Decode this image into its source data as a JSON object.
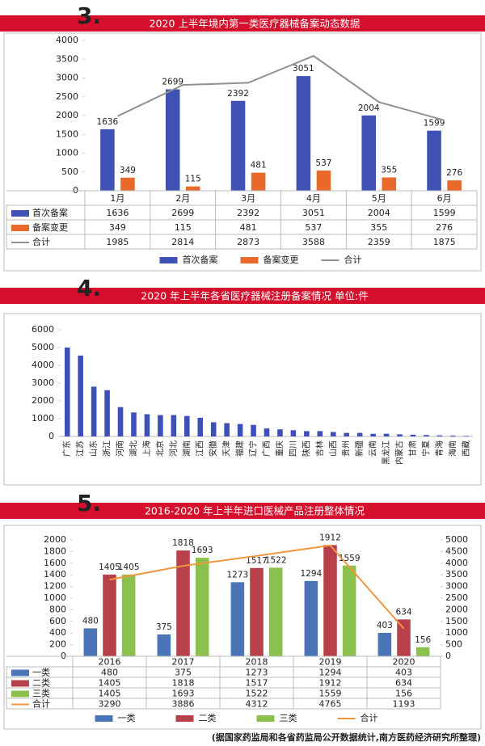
{
  "chart_data": [
    {
      "type": "bar",
      "section_number": "3.",
      "title": "2020 上半年境内第一类医疗器械备案动态数据",
      "categories": [
        "1月",
        "2月",
        "3月",
        "4月",
        "5月",
        "6月"
      ],
      "series": [
        {
          "name": "首次备案",
          "type": "bar",
          "color": "#3f51b5",
          "values": [
            1636,
            2699,
            2392,
            3051,
            2004,
            1599
          ]
        },
        {
          "name": "备案变更",
          "type": "bar",
          "color": "#e8692a",
          "values": [
            349,
            115,
            481,
            537,
            355,
            276
          ]
        },
        {
          "name": "合计",
          "type": "line",
          "color": "#909090",
          "values": [
            1985,
            2814,
            2873,
            3588,
            2359,
            1875
          ]
        }
      ],
      "ylim": [
        0,
        4000
      ],
      "yticks": [
        0,
        500,
        1000,
        1500,
        2000,
        2500,
        3000,
        3500,
        4000
      ],
      "grid": false,
      "data_labels": true,
      "table": true,
      "legend": "bottom"
    },
    {
      "type": "bar",
      "section_number": "4.",
      "title": "2020 年上半年各省医疗器械注册备案情况    单位:件",
      "categories": [
        "广东",
        "江苏",
        "山东",
        "浙江",
        "河南",
        "湖北",
        "上海",
        "北京",
        "河北",
        "湖南",
        "江西",
        "安徽",
        "天津",
        "福建",
        "辽宁",
        "广西",
        "重庆",
        "四川",
        "陕西",
        "吉林",
        "山西",
        "贵州",
        "新疆",
        "云南",
        "黑龙江",
        "内蒙古",
        "甘肃",
        "宁夏",
        "青海",
        "海南",
        "西藏"
      ],
      "series": [
        {
          "type": "bar",
          "color": "#3f4fb8",
          "values": [
            5000,
            4550,
            2800,
            2600,
            1650,
            1350,
            1250,
            1200,
            1200,
            1150,
            1050,
            800,
            750,
            700,
            650,
            450,
            400,
            350,
            300,
            300,
            250,
            200,
            200,
            150,
            150,
            120,
            100,
            80,
            60,
            50,
            30
          ]
        }
      ],
      "ylim": [
        0,
        6000
      ],
      "yticks": [
        0,
        1000,
        2000,
        3000,
        4000,
        5000,
        6000
      ],
      "grid": false,
      "data_labels": false,
      "table": false
    },
    {
      "type": "bar",
      "section_number": "5.",
      "title": "2016-2020 年上半年进口医械产品注册整体情况",
      "categories": [
        "2016",
        "2017",
        "2018",
        "2019",
        "2020"
      ],
      "series": [
        {
          "name": "一类",
          "type": "bar",
          "color": "#4a76b8",
          "values": [
            480,
            375,
            1273,
            1294,
            403
          ]
        },
        {
          "name": "二类",
          "type": "bar",
          "color": "#b8404a",
          "values": [
            1405,
            1818,
            1517,
            1912,
            634
          ]
        },
        {
          "name": "三类",
          "type": "bar",
          "color": "#8cc04c",
          "values": [
            1405,
            1693,
            1522,
            1559,
            156
          ]
        },
        {
          "name": "合计",
          "type": "line",
          "axis": "y2",
          "color": "#f0963c",
          "values": [
            3290,
            3886,
            4312,
            4765,
            1193
          ]
        }
      ],
      "ylim": [
        0,
        2000
      ],
      "yticks": [
        0,
        200,
        400,
        600,
        800,
        1000,
        1200,
        1400,
        1600,
        1800,
        2000
      ],
      "y2lim": [
        0,
        5000
      ],
      "y2ticks": [
        0,
        500,
        1000,
        1500,
        2000,
        2500,
        3000,
        3500,
        4000,
        4500,
        5000
      ],
      "grid": false,
      "data_labels": true,
      "table": true,
      "legend": "bottom"
    }
  ],
  "footnote": "(据国家药监局和各省药监局公开数据统计,南方医药经济研究所整理)"
}
